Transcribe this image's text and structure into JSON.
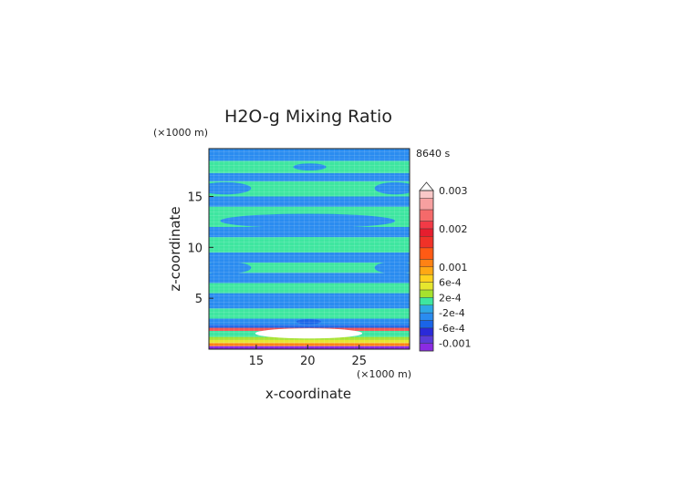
{
  "chart_data": {
    "type": "heatmap",
    "title": "H2O-g Mixing Ratio",
    "time_label": "8640 s",
    "xlabel": "x-coordinate",
    "ylabel": "z-coordinate",
    "x_unit": "(×1000 m)",
    "y_unit": "(×1000 m)",
    "xlim": [
      10.4,
      29.9
    ],
    "ylim": [
      0,
      19.7
    ],
    "x_ticks": [
      15,
      20,
      25
    ],
    "x_tick_labels": [
      "15",
      "20",
      "25"
    ],
    "y_ticks": [
      5,
      10,
      15
    ],
    "y_tick_labels": [
      "5",
      "10",
      "15"
    ],
    "grid": true,
    "colorbar": {
      "labels": [
        {
          "value": 0.003,
          "text": "0.003"
        },
        {
          "value": 0.002,
          "text": "0.002"
        },
        {
          "value": 0.001,
          "text": "0.001"
        },
        {
          "value": 0.0006,
          "text": "6e-4"
        },
        {
          "value": 0.0002,
          "text": "2e-4"
        },
        {
          "value": -0.0002,
          "text": "-2e-4"
        },
        {
          "value": -0.0006,
          "text": "-6e-4"
        },
        {
          "value": -0.001,
          "text": "-0.001"
        }
      ],
      "levels": [
        {
          "from": -0.0012,
          "to": -0.001,
          "color": "#8a2be2"
        },
        {
          "from": -0.001,
          "to": -0.0008,
          "color": "#5a3cd8"
        },
        {
          "from": -0.0008,
          "to": -0.0006,
          "color": "#2a2ad8"
        },
        {
          "from": -0.0006,
          "to": -0.0004,
          "color": "#1a64e8"
        },
        {
          "from": -0.0004,
          "to": -0.0002,
          "color": "#2a8cf0"
        },
        {
          "from": -0.0002,
          "to": 0.0,
          "color": "#2ea8e6"
        },
        {
          "from": 0.0,
          "to": 0.0002,
          "color": "#3ee6a0"
        },
        {
          "from": 0.0002,
          "to": 0.0004,
          "color": "#a6e22e"
        },
        {
          "from": 0.0004,
          "to": 0.0006,
          "color": "#e6e62e"
        },
        {
          "from": 0.0006,
          "to": 0.0008,
          "color": "#ffd21e"
        },
        {
          "from": 0.0008,
          "to": 0.001,
          "color": "#ffa814"
        },
        {
          "from": 0.001,
          "to": 0.0012,
          "color": "#ff8214"
        },
        {
          "from": 0.0012,
          "to": 0.0015,
          "color": "#ff5a14"
        },
        {
          "from": 0.0015,
          "to": 0.0018,
          "color": "#f03228"
        },
        {
          "from": 0.0018,
          "to": 0.002,
          "color": "#e61e2e"
        },
        {
          "from": 0.002,
          "to": 0.0022,
          "color": "#f23a46"
        },
        {
          "from": 0.0022,
          "to": 0.0025,
          "color": "#f56a6a"
        },
        {
          "from": 0.0025,
          "to": 0.0028,
          "color": "#f7a0a0"
        },
        {
          "from": 0.0028,
          "to": 0.003,
          "color": "#f9c8c8"
        }
      ]
    },
    "field_bands": [
      {
        "z0": 0.0,
        "z1": 0.3,
        "color": "#8a2be2"
      },
      {
        "z0": 0.3,
        "z1": 0.6,
        "color": "#ff8214"
      },
      {
        "z0": 0.6,
        "z1": 0.9,
        "color": "#e6e62e"
      },
      {
        "z0": 0.9,
        "z1": 1.2,
        "color": "#a6e22e"
      },
      {
        "z0": 1.2,
        "z1": 1.8,
        "color": "#3ee6a0"
      },
      {
        "z0": 1.8,
        "z1": 2.1,
        "color": "#f05050"
      },
      {
        "z0": 2.1,
        "z1": 2.4,
        "color": "#1a64e8"
      },
      {
        "z0": 2.4,
        "z1": 3.0,
        "color": "#2a8cf0"
      },
      {
        "z0": 3.0,
        "z1": 4.0,
        "color": "#3ee6a0"
      },
      {
        "z0": 4.0,
        "z1": 5.5,
        "color": "#2a8cf0"
      },
      {
        "z0": 5.5,
        "z1": 6.5,
        "color": "#3ee6a0"
      },
      {
        "z0": 6.5,
        "z1": 7.5,
        "color": "#2a8cf0"
      },
      {
        "z0": 7.5,
        "z1": 8.5,
        "color": "#3ee6a0"
      },
      {
        "z0": 8.5,
        "z1": 9.5,
        "color": "#2a8cf0"
      },
      {
        "z0": 9.5,
        "z1": 11.0,
        "color": "#3ee6a0"
      },
      {
        "z0": 11.0,
        "z1": 12.0,
        "color": "#2a8cf0"
      },
      {
        "z0": 12.0,
        "z1": 14.0,
        "color": "#3ee6a0"
      },
      {
        "z0": 14.0,
        "z1": 15.0,
        "color": "#2a8cf0"
      },
      {
        "z0": 15.0,
        "z1": 16.5,
        "color": "#3ee6a0"
      },
      {
        "z0": 16.5,
        "z1": 17.3,
        "color": "#2a8cf0"
      },
      {
        "z0": 17.3,
        "z1": 18.5,
        "color": "#3ee6a0"
      },
      {
        "z0": 18.5,
        "z1": 19.7,
        "color": "#2a8cf0"
      }
    ],
    "field_blobs": [
      {
        "x": 20.1,
        "z": 1.55,
        "rx": 5.2,
        "rz": 0.5,
        "color": "#ffffff"
      },
      {
        "x": 20.1,
        "z": 2.7,
        "rx": 1.2,
        "rz": 0.25,
        "color": "#1a64e8"
      },
      {
        "x": 20.2,
        "z": 17.9,
        "rx": 1.6,
        "rz": 0.35,
        "color": "#2a8cf0"
      },
      {
        "x": 20.0,
        "z": 10.4,
        "rx": 9.5,
        "rz": 0.6,
        "color": "#3ee6a0"
      },
      {
        "x": 20.0,
        "z": 12.6,
        "rx": 8.5,
        "rz": 0.7,
        "color": "#2a8cf0"
      },
      {
        "x": 20.0,
        "z": 6.0,
        "rx": 10.5,
        "rz": 0.45,
        "color": "#3ee6a0"
      },
      {
        "x": 12.0,
        "z": 8.0,
        "rx": 2.5,
        "rz": 0.6,
        "color": "#2a8cf0"
      },
      {
        "x": 28.5,
        "z": 8.0,
        "rx": 2.0,
        "rz": 0.6,
        "color": "#2a8cf0"
      },
      {
        "x": 12.0,
        "z": 15.8,
        "rx": 2.5,
        "rz": 0.6,
        "color": "#2a8cf0"
      },
      {
        "x": 28.5,
        "z": 15.8,
        "rx": 2.0,
        "rz": 0.6,
        "color": "#2a8cf0"
      }
    ]
  }
}
